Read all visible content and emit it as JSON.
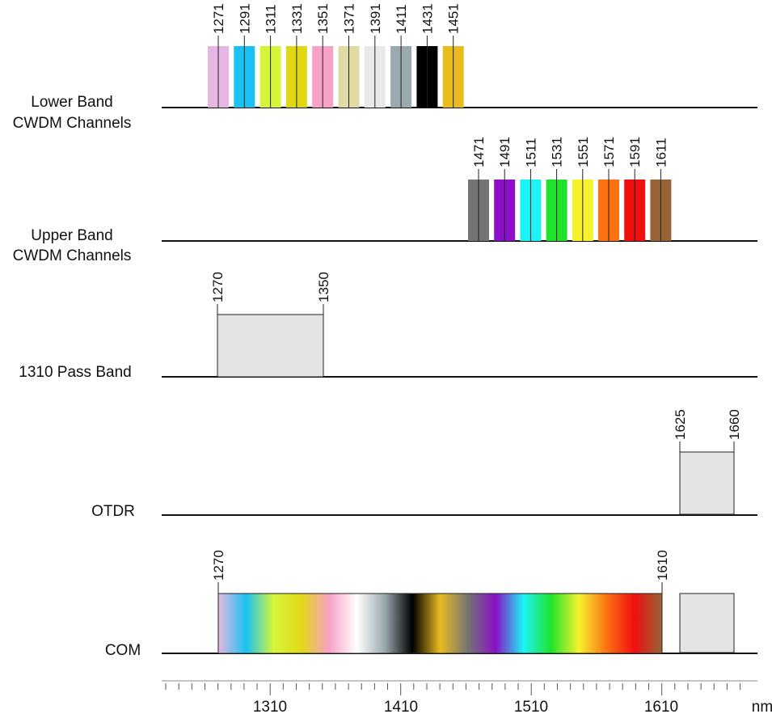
{
  "rows": [
    {
      "id": "lower",
      "label_lines": [
        "Lower Band",
        "CWDM Channels"
      ]
    },
    {
      "id": "upper",
      "label_lines": [
        "Upper Band",
        "CWDM Channels"
      ]
    },
    {
      "id": "pass1310",
      "label_lines": [
        "1310 Pass Band"
      ]
    },
    {
      "id": "otdr",
      "label_lines": [
        "OTDR"
      ]
    },
    {
      "id": "com",
      "label_lines": [
        "COM"
      ]
    }
  ],
  "lower_channels": [
    {
      "label": "1271",
      "color": "#e7b7e3"
    },
    {
      "label": "1291",
      "color": "#19c2f2"
    },
    {
      "label": "1311",
      "color": "#d6f53a"
    },
    {
      "label": "1331",
      "color": "#e1d815"
    },
    {
      "label": "1351",
      "color": "#f7a2c8"
    },
    {
      "label": "1371",
      "color": "#dfdba2"
    },
    {
      "label": "1391",
      "color": "#e9e9e9"
    },
    {
      "label": "1411",
      "color": "#9aa9ad"
    },
    {
      "label": "1431",
      "color": "#000000"
    },
    {
      "label": "1451",
      "color": "#e8bb1f"
    }
  ],
  "upper_channels": [
    {
      "label": "1471",
      "color": "#747474"
    },
    {
      "label": "1491",
      "color": "#8b10c7"
    },
    {
      "label": "1511",
      "color": "#1cf3f5"
    },
    {
      "label": "1531",
      "color": "#1fe32b"
    },
    {
      "label": "1551",
      "color": "#f5f22d"
    },
    {
      "label": "1571",
      "color": "#fb7213"
    },
    {
      "label": "1591",
      "color": "#f00f0f"
    },
    {
      "label": "1611",
      "color": "#966436"
    }
  ],
  "pass_band": {
    "start": "1270",
    "end": "1350",
    "color": "#e4e4e4"
  },
  "otdr_band": {
    "start": "1625",
    "end": "1660",
    "color": "#e4e4e4"
  },
  "com_band": {
    "start": "1270",
    "end": "1610",
    "gradient_colors": [
      "#e7b7e3",
      "#19c2f2",
      "#d6f53a",
      "#e1d815",
      "#f7a2c8",
      "#ffffff",
      "#9aa9ad",
      "#000000",
      "#e8bb1f",
      "#747474",
      "#8b10c7",
      "#1cf3f5",
      "#1fe32b",
      "#f5f22d",
      "#fb7213",
      "#f00f0f",
      "#966436"
    ],
    "extra_block_color": "#e4e4e4"
  },
  "axis": {
    "tick_labels": [
      "1310",
      "1410",
      "1510",
      "1610"
    ],
    "unit": "nm"
  }
}
